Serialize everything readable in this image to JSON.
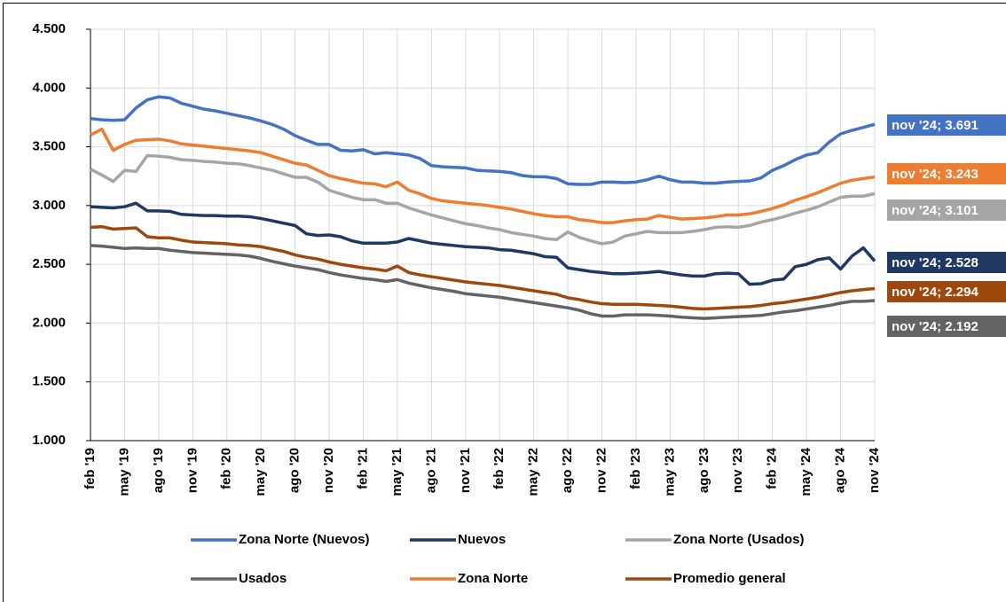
{
  "chart_data": {
    "type": "line",
    "categories": [
      "feb '19",
      null,
      null,
      "may '19",
      null,
      null,
      "ago '19",
      null,
      null,
      "nov '19",
      null,
      null,
      "feb '20",
      null,
      null,
      "may '20",
      null,
      null,
      "ago '20",
      null,
      null,
      "nov '20",
      null,
      null,
      "feb '21",
      null,
      null,
      "may '21",
      null,
      null,
      "ago '21",
      null,
      null,
      "nov '21",
      null,
      null,
      "feb '22",
      null,
      null,
      "may '22",
      null,
      null,
      "ago '22",
      null,
      null,
      "nov '22",
      null,
      null,
      "feb '23",
      null,
      null,
      "may '23",
      null,
      null,
      "ago '23",
      null,
      null,
      "nov '23",
      null,
      null,
      "feb '24",
      null,
      null,
      "may '24",
      null,
      null,
      "ago '24",
      null,
      null,
      "nov '24"
    ],
    "ylim": [
      1000,
      4500
    ],
    "yticks": [
      {
        "value": 1000,
        "label": "1.000"
      },
      {
        "value": 1500,
        "label": "1.500"
      },
      {
        "value": 2000,
        "label": "2.000"
      },
      {
        "value": 2500,
        "label": "2.500"
      },
      {
        "value": 3000,
        "label": "3.000"
      },
      {
        "value": 3500,
        "label": "3.500"
      },
      {
        "value": 4000,
        "label": "4.000"
      },
      {
        "value": 4500,
        "label": "4.500"
      }
    ],
    "grid": true,
    "series": [
      {
        "name": "Zona Norte (Nuevos)",
        "color": "#4472c4",
        "values": [
          3740,
          3730,
          3725,
          3730,
          3830,
          3900,
          3925,
          3915,
          3870,
          3845,
          3820,
          3805,
          3785,
          3765,
          3745,
          3720,
          3690,
          3650,
          3595,
          3555,
          3520,
          3520,
          3470,
          3465,
          3475,
          3440,
          3450,
          3440,
          3430,
          3400,
          3340,
          3330,
          3325,
          3320,
          3300,
          3295,
          3290,
          3280,
          3255,
          3245,
          3245,
          3230,
          3185,
          3180,
          3180,
          3200,
          3200,
          3195,
          3200,
          3220,
          3250,
          3220,
          3200,
          3200,
          3190,
          3190,
          3200,
          3205,
          3210,
          3235,
          3300,
          3340,
          3390,
          3430,
          3450,
          3540,
          3610,
          3640,
          3665,
          3691
        ],
        "value_labels": [
          null,
          null,
          null,
          null,
          null,
          null,
          null,
          null,
          null,
          null,
          null,
          null,
          null,
          null,
          null,
          null,
          null,
          null,
          null,
          null,
          null,
          null,
          null,
          null,
          null,
          null,
          null,
          null,
          null,
          null,
          null,
          null,
          null,
          null,
          null,
          null,
          null,
          null,
          null,
          null,
          null,
          null,
          null,
          null,
          null,
          null,
          null,
          null,
          null,
          null,
          null,
          null,
          null,
          null,
          null,
          null,
          null,
          null,
          null,
          null,
          null,
          null,
          null,
          null,
          null,
          null,
          null,
          null,
          null,
          "nov '24;  3.691"
        ]
      },
      {
        "name": "Nuevos",
        "color": "#203864",
        "values": [
          2990,
          2985,
          2980,
          2990,
          3020,
          2955,
          2955,
          2950,
          2925,
          2920,
          2915,
          2915,
          2910,
          2910,
          2905,
          2890,
          2870,
          2850,
          2830,
          2760,
          2745,
          2750,
          2735,
          2700,
          2680,
          2680,
          2680,
          2690,
          2720,
          2700,
          2680,
          2670,
          2660,
          2650,
          2645,
          2640,
          2625,
          2620,
          2605,
          2590,
          2565,
          2560,
          2470,
          2455,
          2440,
          2430,
          2420,
          2420,
          2425,
          2430,
          2440,
          2425,
          2410,
          2400,
          2400,
          2420,
          2425,
          2420,
          2330,
          2335,
          2365,
          2375,
          2480,
          2500,
          2540,
          2555,
          2460,
          2570,
          2640,
          2528
        ],
        "value_labels": [
          null,
          null,
          null,
          null,
          null,
          null,
          null,
          null,
          null,
          null,
          null,
          null,
          null,
          null,
          null,
          null,
          null,
          null,
          null,
          null,
          null,
          null,
          null,
          null,
          null,
          null,
          null,
          null,
          null,
          null,
          null,
          null,
          null,
          null,
          null,
          null,
          null,
          null,
          null,
          null,
          null,
          null,
          null,
          null,
          null,
          null,
          null,
          null,
          null,
          null,
          null,
          null,
          null,
          null,
          null,
          null,
          null,
          null,
          null,
          null,
          null,
          null,
          null,
          null,
          null,
          null,
          null,
          null,
          null,
          "nov '24;  2.528"
        ]
      },
      {
        "name": "Zona Norte (Usados)",
        "color": "#a5a5a5",
        "values": [
          3310,
          3260,
          3205,
          3300,
          3290,
          3425,
          3420,
          3410,
          3390,
          3385,
          3375,
          3370,
          3360,
          3355,
          3340,
          3320,
          3300,
          3270,
          3240,
          3240,
          3200,
          3130,
          3100,
          3070,
          3050,
          3050,
          3020,
          3020,
          2980,
          2950,
          2920,
          2895,
          2870,
          2845,
          2830,
          2810,
          2795,
          2770,
          2755,
          2740,
          2720,
          2710,
          2775,
          2730,
          2700,
          2675,
          2690,
          2740,
          2760,
          2780,
          2770,
          2770,
          2770,
          2780,
          2795,
          2815,
          2820,
          2815,
          2830,
          2860,
          2880,
          2905,
          2935,
          2960,
          2990,
          3030,
          3070,
          3080,
          3080,
          3101
        ],
        "value_labels": [
          null,
          null,
          null,
          null,
          null,
          null,
          null,
          null,
          null,
          null,
          null,
          null,
          null,
          null,
          null,
          null,
          null,
          null,
          null,
          null,
          null,
          null,
          null,
          null,
          null,
          null,
          null,
          null,
          null,
          null,
          null,
          null,
          null,
          null,
          null,
          null,
          null,
          null,
          null,
          null,
          null,
          null,
          null,
          null,
          null,
          null,
          null,
          null,
          null,
          null,
          null,
          null,
          null,
          null,
          null,
          null,
          null,
          null,
          null,
          null,
          null,
          null,
          null,
          null,
          null,
          null,
          null,
          null,
          null,
          "nov '24;  3.101"
        ]
      },
      {
        "name": "Usados",
        "color": "#636363",
        "values": [
          2660,
          2655,
          2645,
          2635,
          2640,
          2635,
          2635,
          2620,
          2610,
          2600,
          2595,
          2590,
          2585,
          2580,
          2570,
          2550,
          2525,
          2505,
          2485,
          2470,
          2455,
          2430,
          2410,
          2395,
          2380,
          2370,
          2355,
          2370,
          2340,
          2320,
          2300,
          2285,
          2270,
          2250,
          2240,
          2230,
          2220,
          2205,
          2190,
          2175,
          2160,
          2145,
          2130,
          2110,
          2080,
          2060,
          2060,
          2070,
          2070,
          2070,
          2065,
          2060,
          2050,
          2045,
          2040,
          2045,
          2050,
          2055,
          2060,
          2065,
          2080,
          2095,
          2105,
          2120,
          2135,
          2150,
          2170,
          2185,
          2185,
          2192
        ],
        "value_labels": [
          null,
          null,
          null,
          null,
          null,
          null,
          null,
          null,
          null,
          null,
          null,
          null,
          null,
          null,
          null,
          null,
          null,
          null,
          null,
          null,
          null,
          null,
          null,
          null,
          null,
          null,
          null,
          null,
          null,
          null,
          null,
          null,
          null,
          null,
          null,
          null,
          null,
          null,
          null,
          null,
          null,
          null,
          null,
          null,
          null,
          null,
          null,
          null,
          null,
          null,
          null,
          null,
          null,
          null,
          null,
          null,
          null,
          null,
          null,
          null,
          null,
          null,
          null,
          null,
          null,
          null,
          null,
          null,
          null,
          "nov '24;  2.192"
        ]
      },
      {
        "name": "Zona Norte",
        "color": "#ed7d31",
        "values": [
          3600,
          3650,
          3470,
          3520,
          3555,
          3560,
          3565,
          3550,
          3525,
          3515,
          3505,
          3495,
          3485,
          3475,
          3465,
          3450,
          3420,
          3390,
          3360,
          3345,
          3300,
          3255,
          3230,
          3210,
          3190,
          3185,
          3160,
          3200,
          3130,
          3100,
          3060,
          3040,
          3030,
          3020,
          3010,
          3000,
          2985,
          2970,
          2950,
          2930,
          2915,
          2905,
          2905,
          2880,
          2870,
          2855,
          2855,
          2870,
          2880,
          2885,
          2915,
          2900,
          2885,
          2890,
          2895,
          2905,
          2920,
          2920,
          2930,
          2950,
          2975,
          3005,
          3045,
          3075,
          3110,
          3150,
          3190,
          3215,
          3230,
          3243
        ],
        "value_labels": [
          null,
          null,
          null,
          null,
          null,
          null,
          null,
          null,
          null,
          null,
          null,
          null,
          null,
          null,
          null,
          null,
          null,
          null,
          null,
          null,
          null,
          null,
          null,
          null,
          null,
          null,
          null,
          null,
          null,
          null,
          null,
          null,
          null,
          null,
          null,
          null,
          null,
          null,
          null,
          null,
          null,
          null,
          null,
          null,
          null,
          null,
          null,
          null,
          null,
          null,
          null,
          null,
          null,
          null,
          null,
          null,
          null,
          null,
          null,
          null,
          null,
          null,
          null,
          null,
          null,
          null,
          null,
          null,
          null,
          "nov '24;  3.243"
        ]
      },
      {
        "name": "Promedio general",
        "color": "#9e480e",
        "values": [
          2815,
          2820,
          2800,
          2805,
          2810,
          2735,
          2725,
          2725,
          2705,
          2690,
          2685,
          2680,
          2675,
          2665,
          2660,
          2650,
          2630,
          2610,
          2580,
          2560,
          2545,
          2520,
          2500,
          2485,
          2470,
          2460,
          2445,
          2485,
          2430,
          2410,
          2395,
          2380,
          2365,
          2350,
          2340,
          2330,
          2320,
          2305,
          2290,
          2275,
          2260,
          2245,
          2215,
          2200,
          2180,
          2165,
          2160,
          2160,
          2160,
          2155,
          2150,
          2145,
          2135,
          2125,
          2120,
          2125,
          2130,
          2135,
          2140,
          2150,
          2165,
          2175,
          2190,
          2205,
          2220,
          2240,
          2260,
          2275,
          2285,
          2294
        ],
        "value_labels": [
          null,
          null,
          null,
          null,
          null,
          null,
          null,
          null,
          null,
          null,
          null,
          null,
          null,
          null,
          null,
          null,
          null,
          null,
          null,
          null,
          null,
          null,
          null,
          null,
          null,
          null,
          null,
          null,
          null,
          null,
          null,
          null,
          null,
          null,
          null,
          null,
          null,
          null,
          null,
          null,
          null,
          null,
          null,
          null,
          null,
          null,
          null,
          null,
          null,
          null,
          null,
          null,
          null,
          null,
          null,
          null,
          null,
          null,
          null,
          null,
          null,
          null,
          null,
          null,
          null,
          null,
          null,
          null,
          null,
          "nov '24; 2.294"
        ]
      }
    ]
  }
}
